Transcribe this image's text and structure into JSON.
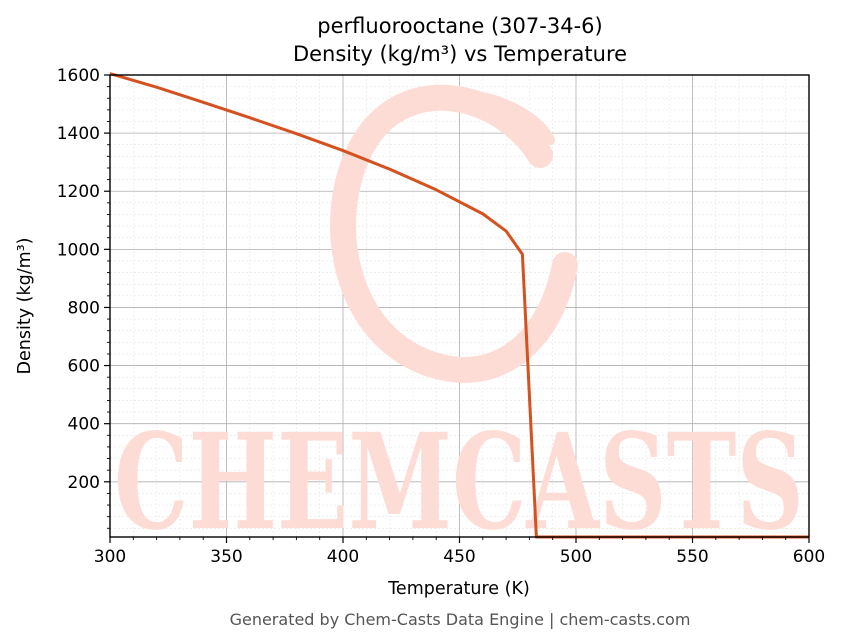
{
  "chart_data": {
    "type": "line",
    "title": "perfluorooctane (307-34-6)",
    "subtitle": "Density (kg/m³) vs Temperature",
    "xlabel": "Temperature (K)",
    "ylabel": "Density (kg/m³)",
    "xlim": [
      300,
      600
    ],
    "ylim": [
      10,
      1600
    ],
    "xticks": [
      300,
      350,
      400,
      450,
      500,
      550,
      600
    ],
    "yticks": [
      200,
      400,
      600,
      800,
      1000,
      1200,
      1400,
      1600
    ],
    "grid": true,
    "line_color": "#d45120",
    "series": [
      {
        "name": "",
        "x": [
          300,
          320,
          340,
          360,
          380,
          400,
          420,
          440,
          460,
          470,
          477,
          483,
          490,
          500,
          550,
          600
        ],
        "y": [
          1605,
          1558,
          1506,
          1453,
          1398,
          1340,
          1276,
          1205,
          1122,
          1063,
          983,
          10,
          10,
          10,
          10,
          10
        ]
      }
    ]
  },
  "watermark": {
    "text": "CHEMCASTS",
    "color": "#fddcd6"
  },
  "footer": {
    "text": "Generated by Chem-Casts Data Engine | chem-casts.com"
  }
}
